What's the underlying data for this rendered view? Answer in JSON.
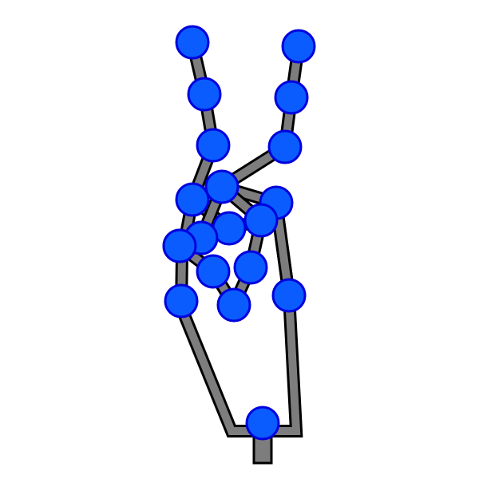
{
  "colors": {
    "background": "#ffffff",
    "bone_fill": "#7d7d7d",
    "bone_stroke": "#000000",
    "joint_fill": "#0a5cff",
    "joint_stroke": "#0000dd"
  },
  "gesture": "peace-sign",
  "joints": [
    {
      "id": "wrist"
    },
    {
      "id": "thumb-cmc"
    },
    {
      "id": "thumb-mcp"
    },
    {
      "id": "thumb-ip"
    },
    {
      "id": "thumb-tip"
    },
    {
      "id": "index-mcp"
    },
    {
      "id": "index-pip"
    },
    {
      "id": "index-dip"
    },
    {
      "id": "index-tip"
    },
    {
      "id": "middle-mcp"
    },
    {
      "id": "middle-pip"
    },
    {
      "id": "middle-dip"
    },
    {
      "id": "middle-tip"
    },
    {
      "id": "ring-mcp"
    },
    {
      "id": "ring-pip"
    },
    {
      "id": "ring-dip"
    },
    {
      "id": "ring-tip"
    },
    {
      "id": "pinky-mcp"
    },
    {
      "id": "pinky-pip"
    },
    {
      "id": "pinky-dip"
    },
    {
      "id": "pinky-tip"
    }
  ]
}
